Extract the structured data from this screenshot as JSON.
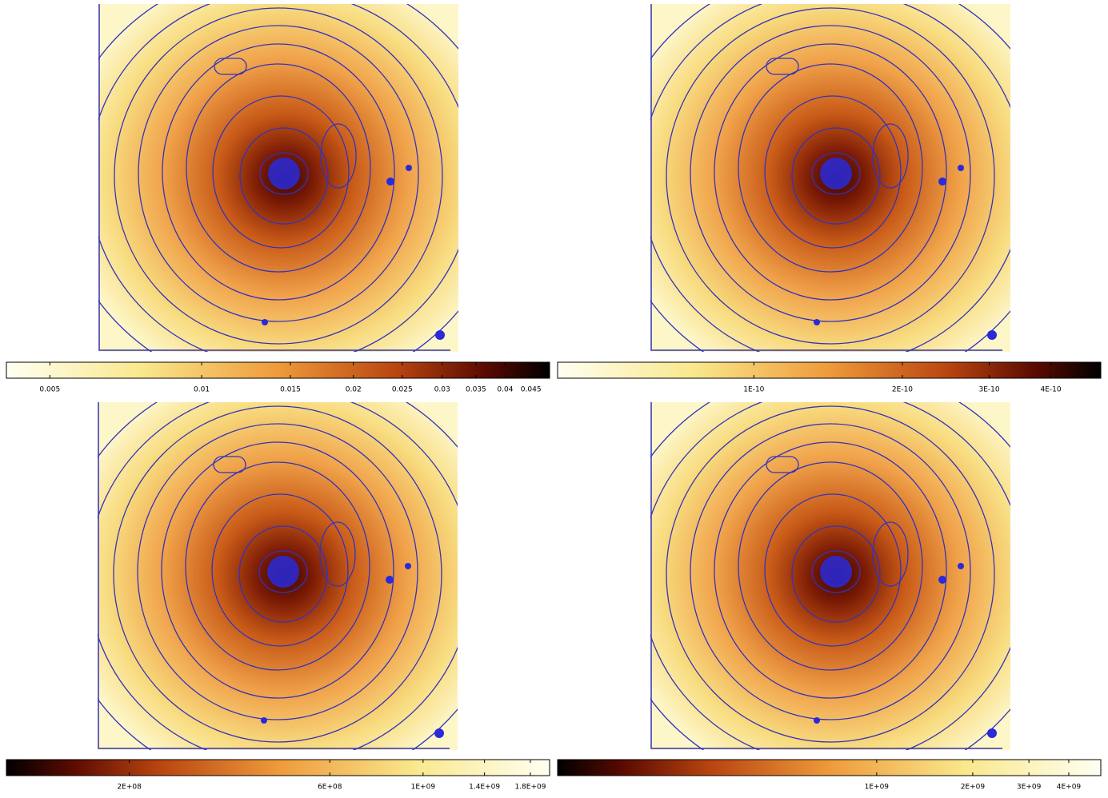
{
  "panels": [
    {
      "colorbar": {
        "log": true,
        "reversed": false,
        "range": [
          0.0041,
          0.049
        ],
        "ticks": [
          0.005,
          0.01,
          0.015,
          0.02,
          0.025,
          0.03,
          0.035,
          0.04,
          0.045
        ]
      }
    },
    {
      "colorbar": {
        "log": true,
        "reversed": false,
        "range": [
          4e-11,
          5.05e-10
        ],
        "ticks": [
          {
            "value": 1e-10,
            "label": "1E-10"
          },
          {
            "value": 2e-10,
            "label": "2E-10"
          },
          {
            "value": 3e-10,
            "label": "3E-10"
          },
          {
            "value": 4e-10,
            "label": "4E-10"
          }
        ]
      }
    },
    {
      "colorbar": {
        "log": true,
        "reversed": true,
        "range": [
          102000000.0,
          2000000000.0
        ],
        "ticks": [
          {
            "value": 200000000.0,
            "label": "2E+08"
          },
          {
            "value": 600000000.0,
            "label": "6E+08"
          },
          {
            "value": 1000000000.0,
            "label": "1E+09"
          },
          {
            "value": 1400000000.0,
            "label": "1.4E+09"
          },
          {
            "value": 1800000000.0,
            "label": "1.8E+09"
          }
        ]
      }
    },
    {
      "colorbar": {
        "log": true,
        "reversed": true,
        "range": [
          100000000.0,
          5040000000.0
        ],
        "ticks": [
          {
            "value": 1000000000.0,
            "label": "1E+09"
          },
          {
            "value": 2000000000.0,
            "label": "2E+09"
          },
          {
            "value": 3000000000.0,
            "label": "3E+09"
          },
          {
            "value": 4000000000.0,
            "label": "4E+09"
          }
        ]
      }
    }
  ]
}
